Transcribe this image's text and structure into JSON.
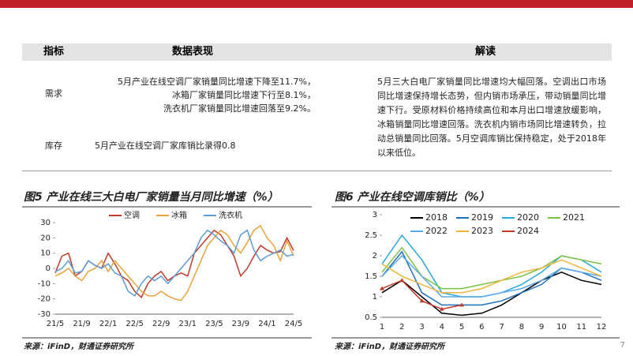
{
  "table": {
    "headers": [
      "指标",
      "数据表现",
      "解读"
    ],
    "rows": [
      {
        "label": "需求",
        "data": [
          "5月产业在线空调厂家销量同比增速下降至11.7%，",
          "冰箱厂家销量同比增速下行至8.1%，",
          "洗衣机厂家销量同比增速回落至9.2%。"
        ]
      },
      {
        "label": "库存",
        "data": [
          "5月产业在线空调厂家库销比录得0.8"
        ]
      }
    ],
    "interpretation": "5月三大白电厂家销量同比增速均大幅回落。空调出口市场同比增速保持增长态势，但内销市场承压，带动销量同比增速下行。受原材料价格持续高位和本月出口增速放缓影响，冰箱销量同比增速回落。洗衣机内销市场同比增速转负，拉动总销量同比回落。5月空调库销比保持稳定，处于2018年以来低位。"
  },
  "chart_data": [
    {
      "type": "line",
      "title": "图5  产业在线三大白电厂家销量当月同比增速（%）",
      "categories": [
        "21/5",
        null,
        null,
        null,
        "21/9",
        null,
        null,
        null,
        "22/1",
        null,
        null,
        null,
        "22/5",
        null,
        null,
        null,
        "22/9",
        null,
        null,
        null,
        "23/1",
        null,
        null,
        null,
        "23/5",
        null,
        null,
        null,
        "23/9",
        null,
        null,
        null,
        "24/1",
        null,
        null,
        null,
        "24/5"
      ],
      "ylim": [
        -30,
        30
      ],
      "yticks": [
        -30,
        -20,
        -10,
        0,
        10,
        20,
        30
      ],
      "series": [
        {
          "name": "空调",
          "color": "#c0392b",
          "values": [
            -3,
            8,
            10,
            -5,
            -2,
            5,
            2,
            0,
            10,
            3,
            -5,
            -8,
            -15,
            -19,
            -10,
            -5,
            -2,
            -8,
            -5,
            -3,
            -5,
            10,
            15,
            20,
            25,
            22,
            15,
            8,
            -5,
            0,
            8,
            15,
            12,
            10,
            11,
            20,
            11.7
          ]
        },
        {
          "name": "冰箱",
          "color": "#e8a33a",
          "values": [
            -5,
            -3,
            0,
            -5,
            -8,
            -2,
            0,
            5,
            -2,
            5,
            0,
            -5,
            -10,
            -15,
            -18,
            -18,
            -15,
            -18,
            -20,
            -21,
            -15,
            -5,
            5,
            15,
            20,
            25,
            22,
            15,
            10,
            17,
            25,
            28,
            20,
            15,
            5,
            18,
            8.1
          ]
        },
        {
          "name": "洗衣机",
          "color": "#5b9bd5",
          "values": [
            -2,
            0,
            5,
            -3,
            -2,
            5,
            2,
            0,
            3,
            -3,
            -5,
            -15,
            -18,
            -10,
            -5,
            -8,
            -5,
            -10,
            -5,
            0,
            5,
            10,
            20,
            25,
            22,
            18,
            15,
            10,
            22,
            25,
            12,
            5,
            8,
            10,
            12,
            8,
            9.2
          ]
        }
      ]
    },
    {
      "type": "line",
      "title": "图6  产业在线空调库销比（%）",
      "categories": [
        1,
        2,
        3,
        4,
        5,
        6,
        7,
        8,
        9,
        10,
        11,
        12
      ],
      "ylim": [
        0.5,
        3
      ],
      "yticks": [
        0.5,
        1,
        1.5,
        2,
        2.5,
        3
      ],
      "series": [
        {
          "name": "2018",
          "color": "#000000",
          "values": [
            1.1,
            1.4,
            1.0,
            0.6,
            0.55,
            0.6,
            0.8,
            1.1,
            1.4,
            1.6,
            1.4,
            1.3
          ]
        },
        {
          "name": "2019",
          "color": "#1f6fbf",
          "values": [
            1.5,
            2.1,
            1.1,
            0.8,
            0.8,
            0.8,
            0.9,
            1.1,
            1.3,
            1.7,
            1.6,
            1.4
          ]
        },
        {
          "name": "2020",
          "color": "#29a8e0",
          "values": [
            1.8,
            2.5,
            1.9,
            1.1,
            1.0,
            1.0,
            1.1,
            1.3,
            1.6,
            2.0,
            1.9,
            1.6
          ]
        },
        {
          "name": "2021",
          "color": "#7cc242",
          "values": [
            1.6,
            2.2,
            1.5,
            1.2,
            1.2,
            1.3,
            1.4,
            1.5,
            1.7,
            2.0,
            1.9,
            1.8
          ]
        },
        {
          "name": "2022",
          "color": "#5aa9e6",
          "values": [
            1.5,
            2.0,
            1.5,
            1.0,
            1.0,
            1.0,
            1.1,
            1.2,
            1.4,
            1.7,
            1.6,
            1.5
          ]
        },
        {
          "name": "2023",
          "color": "#f0b43c",
          "values": [
            1.8,
            1.5,
            1.3,
            1.1,
            1.1,
            1.2,
            1.4,
            1.6,
            1.7,
            1.9,
            1.7,
            1.5
          ]
        },
        {
          "name": "2024",
          "color": "#c0392b",
          "values": [
            1.2,
            1.4,
            0.9,
            0.7,
            0.8,
            null,
            null,
            null,
            null,
            null,
            null,
            null
          ]
        }
      ]
    }
  ],
  "sources": [
    "来源：iFinD，财通证券研究所",
    "来源：iFinD，财通证券研究所"
  ],
  "page_number": 7
}
